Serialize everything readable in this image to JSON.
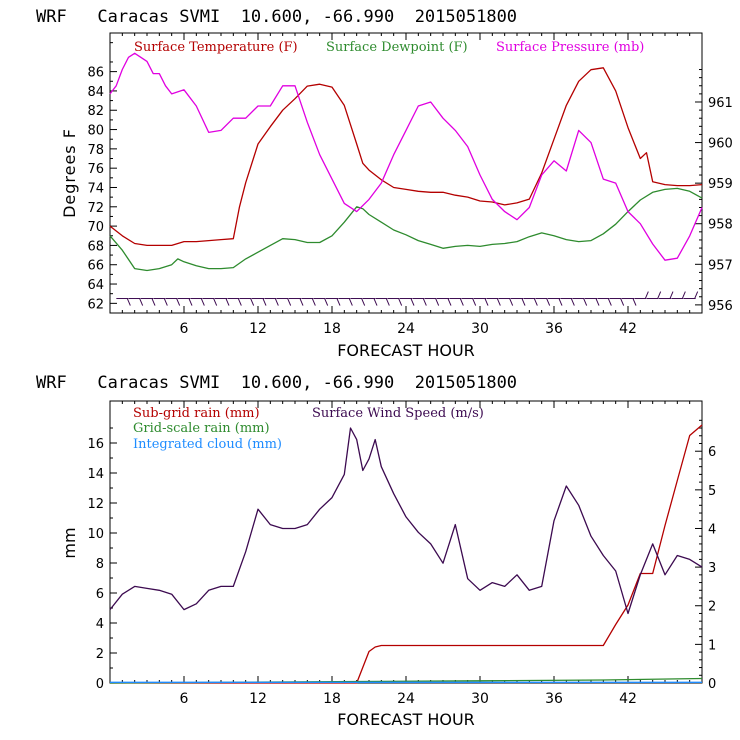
{
  "colors": {
    "temperature": "#b40000",
    "dewpoint": "#2e8b2e",
    "pressure": "#e000e0",
    "wind_speed": "#3c0a50",
    "cloud": "#1e8cff",
    "axis": "#000000"
  },
  "chart_data": [
    {
      "type": "line",
      "title": "WRF   Caracas SVMI  10.600, -66.990  2015051800",
      "xlabel": "FORECAST HOUR",
      "ylabel": "Degrees F",
      "xlim": [
        0,
        48
      ],
      "ylim": [
        61,
        90
      ],
      "y2lim": [
        955.8,
        962.7
      ],
      "x_ticks": [
        6,
        12,
        18,
        24,
        30,
        36,
        42
      ],
      "y_ticks": [
        62,
        64,
        66,
        68,
        70,
        72,
        74,
        76,
        78,
        80,
        82,
        84,
        86
      ],
      "y2_ticks": [
        956,
        957,
        958,
        959,
        960,
        961
      ],
      "legend": [
        "Surface Temperature (F)",
        "Surface Dewpoint (F)",
        "Surface Pressure (mb)"
      ],
      "grid": false,
      "series": [
        {
          "name": "Surface Temperature (F)",
          "axis": "left",
          "x": [
            0,
            1,
            2,
            3,
            4,
            5,
            6,
            7,
            8,
            9,
            10,
            10.5,
            11,
            12,
            13,
            14,
            15,
            16,
            17,
            18,
            19,
            20,
            20.5,
            21,
            22,
            23,
            24,
            25,
            26,
            27,
            28,
            29,
            30,
            31,
            32,
            33,
            34,
            35,
            36,
            37,
            38,
            39,
            40,
            41,
            42,
            43,
            43.5,
            44,
            45,
            46,
            47,
            48
          ],
          "values": [
            70,
            69,
            68.2,
            68,
            68,
            68,
            68.4,
            68.4,
            68.5,
            68.6,
            68.7,
            72,
            74.5,
            78.5,
            80.3,
            82,
            83.2,
            84.5,
            84.7,
            84.4,
            82.5,
            78.5,
            76.5,
            75.8,
            74.8,
            74,
            73.8,
            73.6,
            73.5,
            73.5,
            73.2,
            73,
            72.6,
            72.5,
            72.2,
            72.4,
            72.8,
            75.5,
            79,
            82.5,
            85,
            86.2,
            86.4,
            84,
            80.2,
            77,
            77.6,
            74.6,
            74.3,
            74.2,
            74.2,
            74.3
          ]
        },
        {
          "name": "Surface Dewpoint (F)",
          "axis": "left",
          "x": [
            0,
            1,
            2,
            3,
            4,
            5,
            5.5,
            6,
            7,
            8,
            9,
            10,
            11,
            12,
            13,
            14,
            15,
            16,
            17,
            18,
            19,
            20,
            20.5,
            21,
            22,
            23,
            24,
            25,
            26,
            27,
            28,
            29,
            30,
            31,
            32,
            33,
            34,
            35,
            36,
            37,
            38,
            39,
            40,
            41,
            42,
            43,
            44,
            45,
            46,
            47,
            48
          ],
          "values": [
            69,
            67.5,
            65.6,
            65.4,
            65.6,
            66,
            66.6,
            66.3,
            65.9,
            65.6,
            65.6,
            65.7,
            66.6,
            67.3,
            68,
            68.7,
            68.6,
            68.3,
            68.3,
            69,
            70.4,
            72,
            71.8,
            71.2,
            70.4,
            69.6,
            69.1,
            68.5,
            68.1,
            67.7,
            67.9,
            68,
            67.9,
            68.1,
            68.2,
            68.4,
            68.9,
            69.3,
            69,
            68.6,
            68.4,
            68.5,
            69.2,
            70.2,
            71.5,
            72.7,
            73.5,
            73.8,
            73.9,
            73.6,
            72.9
          ]
        },
        {
          "name": "Surface Pressure (mb)",
          "axis": "right",
          "x": [
            0,
            0.5,
            1,
            1.5,
            2,
            2.5,
            3,
            3.5,
            4,
            4.5,
            5,
            6,
            7,
            8,
            9,
            10,
            11,
            12,
            13,
            14,
            15,
            16,
            17,
            18,
            19,
            20,
            21,
            22,
            23,
            24,
            25,
            26,
            27,
            28,
            29,
            30,
            31,
            32,
            33,
            34,
            35,
            36,
            37,
            38,
            39,
            40,
            41,
            42,
            43,
            44,
            45,
            46,
            47,
            48
          ],
          "values": [
            961.2,
            961.4,
            961.8,
            962.1,
            962.2,
            962.1,
            962.0,
            961.7,
            961.7,
            961.4,
            961.2,
            961.3,
            960.9,
            960.25,
            960.3,
            960.6,
            960.6,
            960.9,
            960.9,
            961.4,
            961.4,
            960.5,
            959.7,
            959.1,
            958.5,
            958.3,
            958.6,
            959,
            959.7,
            960.3,
            960.9,
            961.0,
            960.6,
            960.3,
            959.9,
            959.2,
            958.6,
            958.3,
            958.1,
            958.4,
            959.2,
            959.55,
            959.3,
            960.3,
            960.0,
            959.1,
            959.0,
            958.3,
            958.0,
            957.5,
            957.1,
            957.15,
            957.7,
            958.4
          ]
        }
      ],
      "wind_barbs_y": 62.5
    },
    {
      "type": "line",
      "title": "WRF   Caracas SVMI  10.600, -66.990  2015051800",
      "xlabel": "FORECAST HOUR",
      "ylabel": "mm",
      "xlim": [
        0,
        48
      ],
      "ylim": [
        0,
        18.8
      ],
      "y2lim": [
        0,
        7.3
      ],
      "x_ticks": [
        6,
        12,
        18,
        24,
        30,
        36,
        42
      ],
      "y_ticks": [
        0,
        2,
        4,
        6,
        8,
        10,
        12,
        14,
        16
      ],
      "y2_ticks": [
        0,
        1,
        2,
        3,
        4,
        5,
        6
      ],
      "legend": [
        "Sub-grid rain (mm)",
        "Surface Wind Speed (m/s)",
        "Grid-scale rain (mm)",
        "Integrated cloud (mm)"
      ],
      "grid": false,
      "series": [
        {
          "name": "Sub-grid rain (mm)",
          "axis": "left",
          "x": [
            0,
            20,
            21,
            21.5,
            22,
            30,
            40,
            41,
            42,
            43,
            44,
            45,
            46,
            47,
            48
          ],
          "values": [
            0,
            0,
            2.1,
            2.4,
            2.5,
            2.5,
            2.5,
            3.9,
            5.2,
            7.3,
            7.3,
            10.5,
            13.5,
            16.5,
            17.2
          ]
        },
        {
          "name": "Grid-scale rain (mm)",
          "axis": "left",
          "x": [
            0,
            10,
            20,
            30,
            40,
            48
          ],
          "values": [
            0,
            0.05,
            0.1,
            0.15,
            0.2,
            0.3
          ]
        },
        {
          "name": "Integrated cloud (mm)",
          "axis": "left",
          "x": [
            0,
            12,
            24,
            36,
            48
          ],
          "values": [
            0.05,
            0.05,
            0.05,
            0.05,
            0.05
          ]
        },
        {
          "name": "Surface Wind Speed (m/s)",
          "axis": "right",
          "x": [
            0,
            1,
            2,
            3,
            4,
            5,
            6,
            7,
            8,
            9,
            10,
            11,
            12,
            13,
            14,
            15,
            16,
            17,
            18,
            19,
            19.5,
            20,
            20.5,
            21,
            21.5,
            22,
            23,
            24,
            25,
            26,
            27,
            28,
            29,
            30,
            31,
            32,
            33,
            34,
            35,
            36,
            37,
            38,
            39,
            40,
            41,
            42,
            43,
            44,
            45,
            46,
            47,
            48
          ],
          "values": [
            1.9,
            2.3,
            2.5,
            2.45,
            2.4,
            2.3,
            1.9,
            2.05,
            2.4,
            2.5,
            2.5,
            3.4,
            4.5,
            4.1,
            4.0,
            4.0,
            4.1,
            4.5,
            4.8,
            5.4,
            6.6,
            6.3,
            5.5,
            5.8,
            6.3,
            5.6,
            4.9,
            4.3,
            3.9,
            3.6,
            3.1,
            4.1,
            2.7,
            2.4,
            2.6,
            2.5,
            2.8,
            2.4,
            2.5,
            4.2,
            5.1,
            4.6,
            3.8,
            3.3,
            2.9,
            1.8,
            2.8,
            3.6,
            2.8,
            3.3,
            3.2,
            3.0
          ]
        }
      ]
    }
  ]
}
